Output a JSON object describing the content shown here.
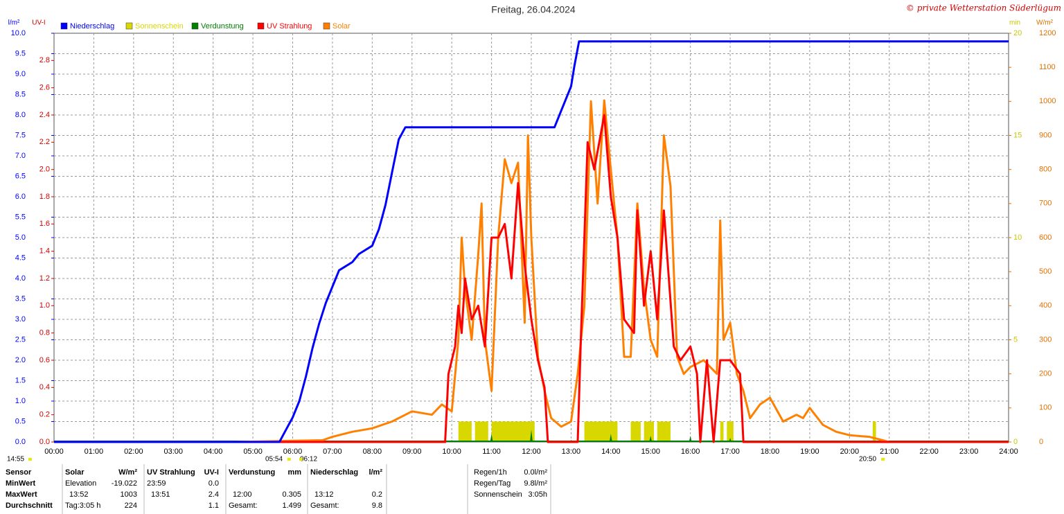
{
  "chart_data": {
    "type": "multi-axis-line",
    "title": "Freitag, 26.04.2024",
    "credit": "© private Wetterstation Süderlügum",
    "grid": true,
    "xlim": [
      "00:00",
      "24:00"
    ],
    "xticks": [
      "00:00",
      "01:00",
      "02:00",
      "03:00",
      "04:00",
      "05:00",
      "06:00",
      "07:00",
      "08:00",
      "09:00",
      "10:00",
      "11:00",
      "12:00",
      "13:00",
      "14:00",
      "15:00",
      "16:00",
      "17:00",
      "18:00",
      "19:00",
      "20:00",
      "21:00",
      "22:00",
      "23:00",
      "24:00"
    ],
    "axes": {
      "precip": {
        "label": "l/m²",
        "color": "#0000ff",
        "side": "left",
        "ylim": [
          0,
          10
        ],
        "yticks": [
          {
            "value": 0,
            "label": "0.0"
          },
          {
            "value": 0.5,
            "label": "0.5"
          },
          {
            "value": 1,
            "label": "1.0"
          },
          {
            "value": 1.5,
            "label": "1.5"
          },
          {
            "value": 2,
            "label": "2.0"
          },
          {
            "value": 2.5,
            "label": "2.5"
          },
          {
            "value": 3,
            "label": "3.0"
          },
          {
            "value": 3.5,
            "label": "3.5"
          },
          {
            "value": 4,
            "label": "4.0"
          },
          {
            "value": 4.5,
            "label": "4.5"
          },
          {
            "value": 5,
            "label": "5.0"
          },
          {
            "value": 5.5,
            "label": "5.5"
          },
          {
            "value": 6,
            "label": "6.0"
          },
          {
            "value": 6.5,
            "label": "6.5"
          },
          {
            "value": 7,
            "label": "7.0"
          },
          {
            "value": 7.5,
            "label": "7.5"
          },
          {
            "value": 8,
            "label": "8.0"
          },
          {
            "value": 8.5,
            "label": "8.5"
          },
          {
            "value": 9,
            "label": "9.0"
          },
          {
            "value": 9.5,
            "label": "9.5"
          },
          {
            "value": 10,
            "label": "10.0"
          }
        ]
      },
      "uv": {
        "label": "UV-I",
        "color": "#d00000",
        "side": "left",
        "ylim": [
          0,
          3
        ],
        "yticks": [
          {
            "value": 0,
            "label": "0.0"
          },
          {
            "value": 0.2,
            "label": "0.2"
          },
          {
            "value": 0.4,
            "label": "0.4"
          },
          {
            "value": 0.6,
            "label": "0.6"
          },
          {
            "value": 0.8,
            "label": "0.8"
          },
          {
            "value": 1,
            "label": "1.0"
          },
          {
            "value": 1.2,
            "label": "1.2"
          },
          {
            "value": 1.4,
            "label": "1.4"
          },
          {
            "value": 1.6,
            "label": "1.6"
          },
          {
            "value": 1.8,
            "label": "1.8"
          },
          {
            "value": 2,
            "label": "2.0"
          },
          {
            "value": 2.2,
            "label": "2.2"
          },
          {
            "value": 2.4,
            "label": "2.4"
          },
          {
            "value": 2.6,
            "label": "2.6"
          },
          {
            "value": 2.8,
            "label": "2.8"
          }
        ]
      },
      "sun": {
        "label": "min",
        "color": "#c8c800",
        "side": "right",
        "ylim": [
          0,
          20
        ],
        "yticks": [
          0,
          5,
          10,
          15,
          20
        ]
      },
      "solar": {
        "label": "W/m²",
        "color": "#e07000",
        "side": "right",
        "ylim": [
          0,
          1200
        ],
        "yticks": [
          0,
          100,
          200,
          300,
          400,
          500,
          600,
          700,
          800,
          900,
          1000,
          1100,
          1200
        ]
      }
    },
    "series": [
      {
        "name": "Niederschlag",
        "color": "#0000ff",
        "kind": "line",
        "axis": "precip",
        "x": [
          "00:00",
          "05:40",
          "05:50",
          "06:00",
          "06:10",
          "06:20",
          "06:30",
          "06:40",
          "06:50",
          "07:00",
          "07:10",
          "07:30",
          "07:40",
          "08:00",
          "08:10",
          "08:20",
          "08:30",
          "08:40",
          "08:50",
          "12:35",
          "12:50",
          "13:00",
          "13:05",
          "13:12",
          "24:00"
        ],
        "values": [
          0,
          0,
          0.3,
          0.6,
          1.0,
          1.6,
          2.3,
          2.9,
          3.4,
          3.8,
          4.2,
          4.4,
          4.6,
          4.8,
          5.2,
          5.8,
          6.6,
          7.4,
          7.7,
          7.7,
          8.3,
          8.7,
          9.2,
          9.8,
          9.8
        ]
      },
      {
        "name": "Sonnenschein",
        "color": "#d8d800",
        "kind": "bar",
        "axis": "sun",
        "x_start": [
          "10:10",
          "10:35",
          "11:00",
          "13:20",
          "14:30",
          "14:50",
          "15:10",
          "16:45",
          "16:55",
          "20:35"
        ],
        "x_end": [
          "10:30",
          "10:55",
          "12:05",
          "14:10",
          "14:45",
          "15:05",
          "15:30",
          "16:50",
          "17:05",
          "20:40"
        ],
        "values": [
          1,
          1,
          1,
          1,
          1,
          1,
          1,
          1,
          1,
          1
        ]
      },
      {
        "name": "Verdunstung",
        "color": "#008000",
        "kind": "spike",
        "axis": "precip",
        "x": [
          "10:00",
          "11:00",
          "12:00",
          "13:00",
          "14:00",
          "15:00",
          "16:00",
          "17:00",
          "18:00",
          "19:00"
        ],
        "values": [
          0.05,
          0.2,
          0.305,
          0.05,
          0.2,
          0.15,
          0.15,
          0.1,
          0.05,
          0.03
        ]
      },
      {
        "name": "UV Strahlung",
        "color": "#ff0000",
        "kind": "line",
        "axis": "uv",
        "x": [
          "00:00",
          "09:50",
          "09:55",
          "10:05",
          "10:10",
          "10:15",
          "10:20",
          "10:30",
          "10:40",
          "10:50",
          "11:00",
          "11:10",
          "11:20",
          "11:30",
          "11:40",
          "11:50",
          "12:00",
          "12:10",
          "12:20",
          "12:25",
          "13:10",
          "13:15",
          "13:20",
          "13:25",
          "13:35",
          "13:50",
          "14:00",
          "14:10",
          "14:20",
          "14:35",
          "14:40",
          "14:50",
          "15:00",
          "15:10",
          "15:20",
          "15:35",
          "15:45",
          "16:00",
          "16:10",
          "16:15",
          "16:25",
          "16:35",
          "16:45",
          "17:00",
          "17:15",
          "17:20",
          "24:00"
        ],
        "values": [
          0,
          0,
          0.5,
          0.7,
          1.0,
          0.8,
          1.2,
          0.9,
          1.0,
          0.7,
          1.5,
          1.5,
          1.6,
          1.2,
          1.9,
          1.3,
          0.9,
          0.6,
          0.4,
          0,
          0,
          0.8,
          1.5,
          2.2,
          2.0,
          2.4,
          1.8,
          1.5,
          0.9,
          0.8,
          1.7,
          1.0,
          1.4,
          0.9,
          1.7,
          0.7,
          0.6,
          0.7,
          0.5,
          0,
          0.6,
          0,
          0.6,
          0.6,
          0.5,
          0,
          0
        ]
      },
      {
        "name": "Solar",
        "color": "#ff8000",
        "kind": "line",
        "axis": "solar",
        "x": [
          "04:30",
          "06:45",
          "07:00",
          "07:30",
          "08:00",
          "08:30",
          "09:00",
          "09:30",
          "09:45",
          "10:00",
          "10:10",
          "10:15",
          "10:20",
          "10:30",
          "10:40",
          "10:45",
          "10:50",
          "11:00",
          "11:10",
          "11:20",
          "11:30",
          "11:40",
          "11:50",
          "11:55",
          "12:00",
          "12:10",
          "12:20",
          "12:30",
          "12:45",
          "13:00",
          "13:10",
          "13:20",
          "13:30",
          "13:40",
          "13:50",
          "14:00",
          "14:10",
          "14:20",
          "14:30",
          "14:40",
          "14:50",
          "15:00",
          "15:10",
          "15:20",
          "15:30",
          "15:40",
          "15:50",
          "16:00",
          "16:20",
          "16:40",
          "16:45",
          "16:50",
          "17:00",
          "17:10",
          "17:20",
          "17:30",
          "17:45",
          "18:00",
          "18:20",
          "18:40",
          "18:50",
          "19:00",
          "19:20",
          "19:40",
          "20:00",
          "20:30",
          "20:50",
          "21:00"
        ],
        "values": [
          0,
          5,
          15,
          30,
          40,
          60,
          90,
          80,
          110,
          90,
          300,
          600,
          450,
          300,
          550,
          700,
          300,
          150,
          600,
          830,
          760,
          820,
          350,
          900,
          600,
          250,
          150,
          70,
          45,
          60,
          200,
          400,
          1000,
          700,
          1003,
          800,
          600,
          250,
          250,
          700,
          450,
          300,
          250,
          900,
          750,
          250,
          200,
          220,
          240,
          200,
          650,
          300,
          350,
          200,
          150,
          70,
          110,
          130,
          60,
          80,
          70,
          100,
          50,
          30,
          20,
          15,
          5,
          0
        ]
      }
    ],
    "annotations": [
      {
        "x": "14:55",
        "text": "14:55"
      },
      {
        "x": "05:54",
        "text": "05:54"
      },
      {
        "x": "06:12",
        "text": "06:12"
      },
      {
        "x": "20:50",
        "text": "20:50"
      }
    ]
  },
  "stats": {
    "header": "Sensor",
    "row_labels": [
      "MinWert",
      "MaxWert",
      "Durchschnitt"
    ],
    "groups": [
      {
        "title": "Solar",
        "unit": "W/m²",
        "rows": [
          [
            "Elevation",
            "-19.022"
          ],
          [
            "13:52",
            "1003"
          ],
          [
            "Tag:3:05 h",
            "224"
          ]
        ]
      },
      {
        "title": "UV Strahlung",
        "unit": "UV-I",
        "rows": [
          [
            "23:59",
            "0.0"
          ],
          [
            "13:51",
            "2.4"
          ],
          [
            null,
            "1.1"
          ]
        ]
      },
      {
        "title": "Verdunstung",
        "unit": "mm",
        "rows": [
          null,
          [
            "12:00",
            "0.305"
          ],
          [
            "Gesamt:",
            "1.499"
          ]
        ]
      },
      {
        "title": "Niederschlag",
        "unit": "l/m²",
        "rows": [
          null,
          [
            "13:12",
            "0.2"
          ],
          [
            "Gesamt:",
            "9.8"
          ]
        ]
      }
    ]
  },
  "summary": [
    [
      "Regen/1h",
      "0.0l/m²"
    ],
    [
      "Regen/Tag",
      "9.8l/m²"
    ],
    [
      "Sonnenschein",
      "3:05h"
    ]
  ]
}
